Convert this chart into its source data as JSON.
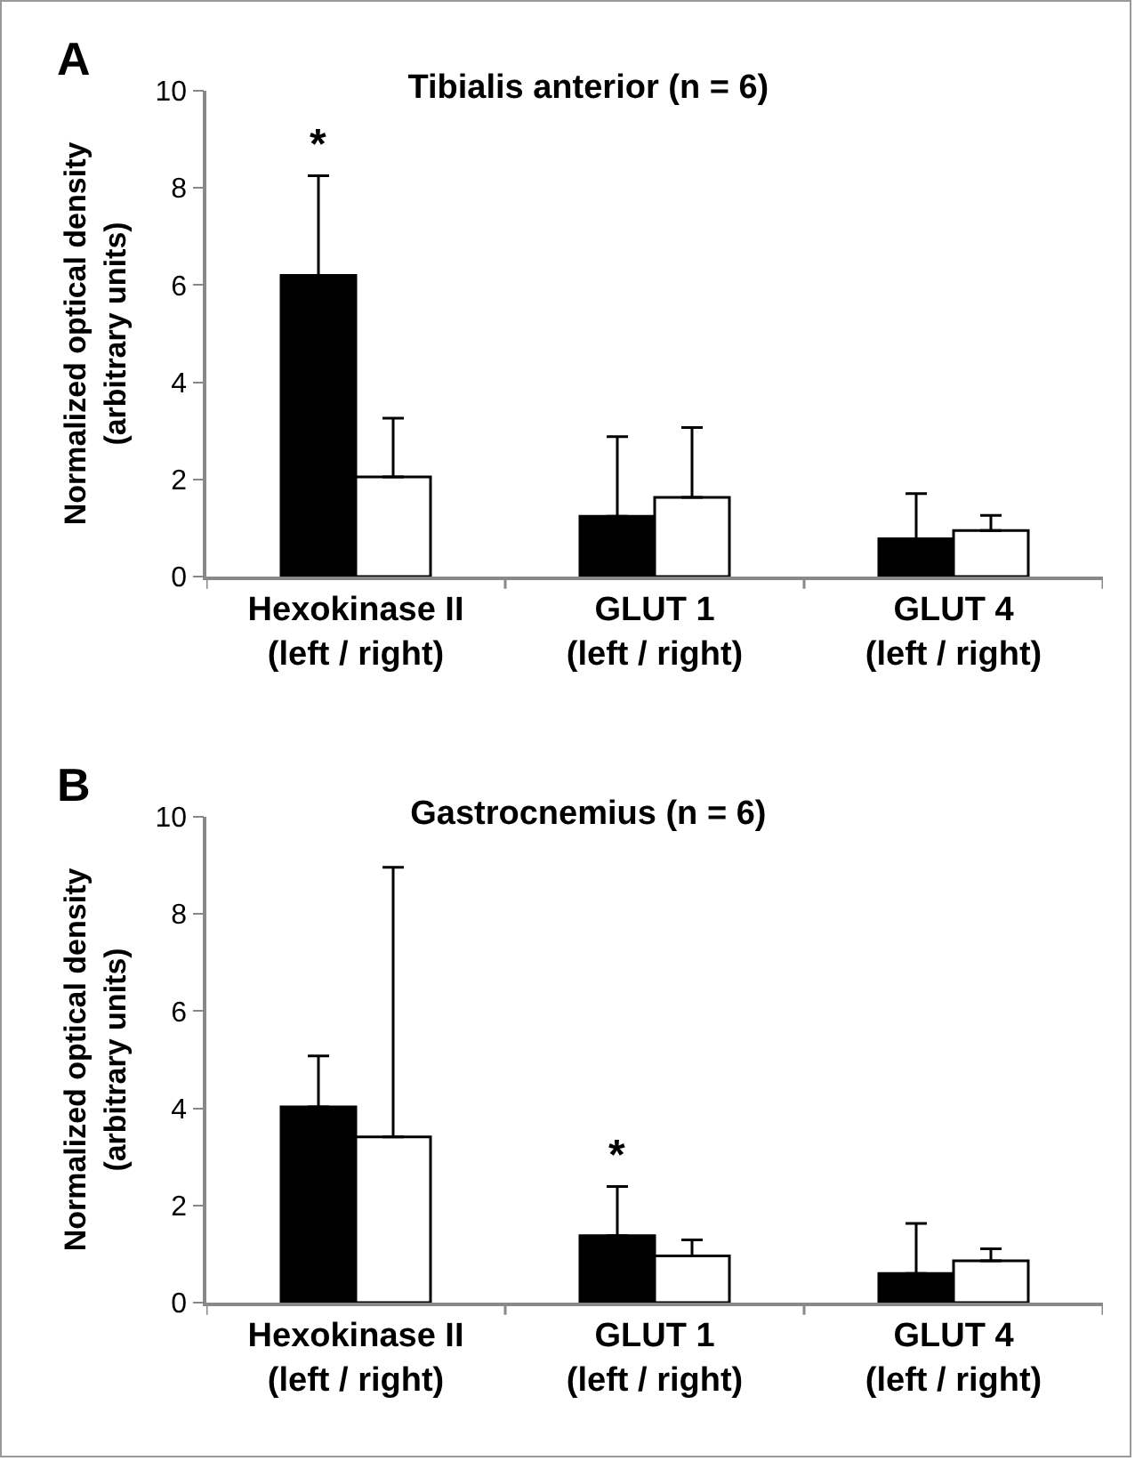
{
  "chart_data": [
    {
      "type": "bar",
      "title": "Tibialis anterior (n = 6)",
      "ylabel": "Normalized optical density\n(arbitrary units)",
      "categories": [
        "Hexokinase II\n(left / right)",
        "GLUT 1\n(left / right)",
        "GLUT 4\n(left / right)"
      ],
      "series": [
        {
          "color": "#000000",
          "values": [
            6.2,
            1.24,
            0.78
          ],
          "errors": [
            [
              6.2,
              8.25
            ],
            [
              1.24,
              2.88
            ],
            [
              0.78,
              1.71
            ]
          ],
          "value_labels": [
            "*",
            null,
            null
          ]
        },
        {
          "color": "#ffffff",
          "values": [
            2.05,
            1.63,
            0.95
          ],
          "errors": [
            [
              2.05,
              3.26
            ],
            [
              1.63,
              3.07
            ],
            [
              0.95,
              1.26
            ]
          ]
        }
      ],
      "ylim": [
        0,
        10
      ],
      "yticks": [
        0,
        2,
        4,
        6,
        8,
        10
      ],
      "grid": false,
      "annotations": [
        "A"
      ]
    },
    {
      "type": "bar",
      "title": "Gastrocnemius (n = 6)",
      "ylabel": "Normalized optical density\n(arbitrary units)",
      "categories": [
        "Hexokinase II\n(left / right)",
        "GLUT 1\n(left / right)",
        "GLUT 4\n(left / right)"
      ],
      "series": [
        {
          "color": "#000000",
          "values": [
            4.03,
            1.38,
            0.6
          ],
          "errors": [
            [
              4.03,
              5.08
            ],
            [
              1.38,
              2.39
            ],
            [
              0.6,
              1.63
            ]
          ],
          "value_labels": [
            null,
            "*",
            null
          ]
        },
        {
          "color": "#ffffff",
          "values": [
            3.41,
            0.96,
            0.86
          ],
          "errors": [
            [
              3.41,
              8.96
            ],
            [
              0.96,
              1.29
            ],
            [
              0.86,
              1.11
            ]
          ]
        }
      ],
      "ylim": [
        0,
        10
      ],
      "yticks": [
        0,
        2,
        4,
        6,
        8,
        10
      ],
      "grid": false,
      "annotations": [
        "B"
      ]
    }
  ]
}
